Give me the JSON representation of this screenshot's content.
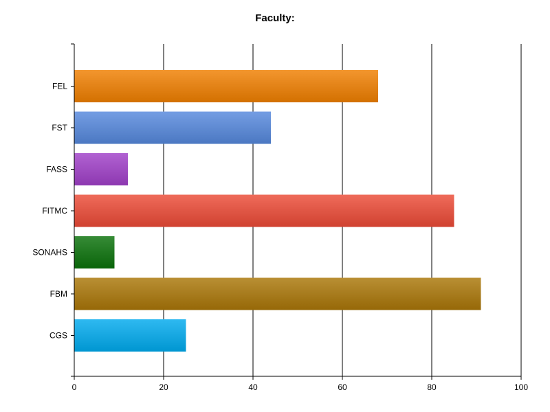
{
  "chart_data": {
    "type": "bar",
    "orientation": "horizontal",
    "title": "Faculty:",
    "xlabel": "",
    "ylabel": "",
    "categories": [
      "FEL",
      "FST",
      "FASS",
      "FITMC",
      "SONAHS",
      "FBM",
      "CGS"
    ],
    "values": [
      68,
      44,
      12,
      85,
      9,
      91,
      25
    ],
    "colors": [
      "#f07f00",
      "#5588dd",
      "#a040c8",
      "#ec4a36",
      "#0a720a",
      "#aa7608",
      "#00aaee"
    ],
    "xlim": [
      0,
      100
    ],
    "xticks": [
      "0",
      "20",
      "40",
      "60",
      "80",
      "100"
    ],
    "grid": true,
    "legend": "none"
  }
}
